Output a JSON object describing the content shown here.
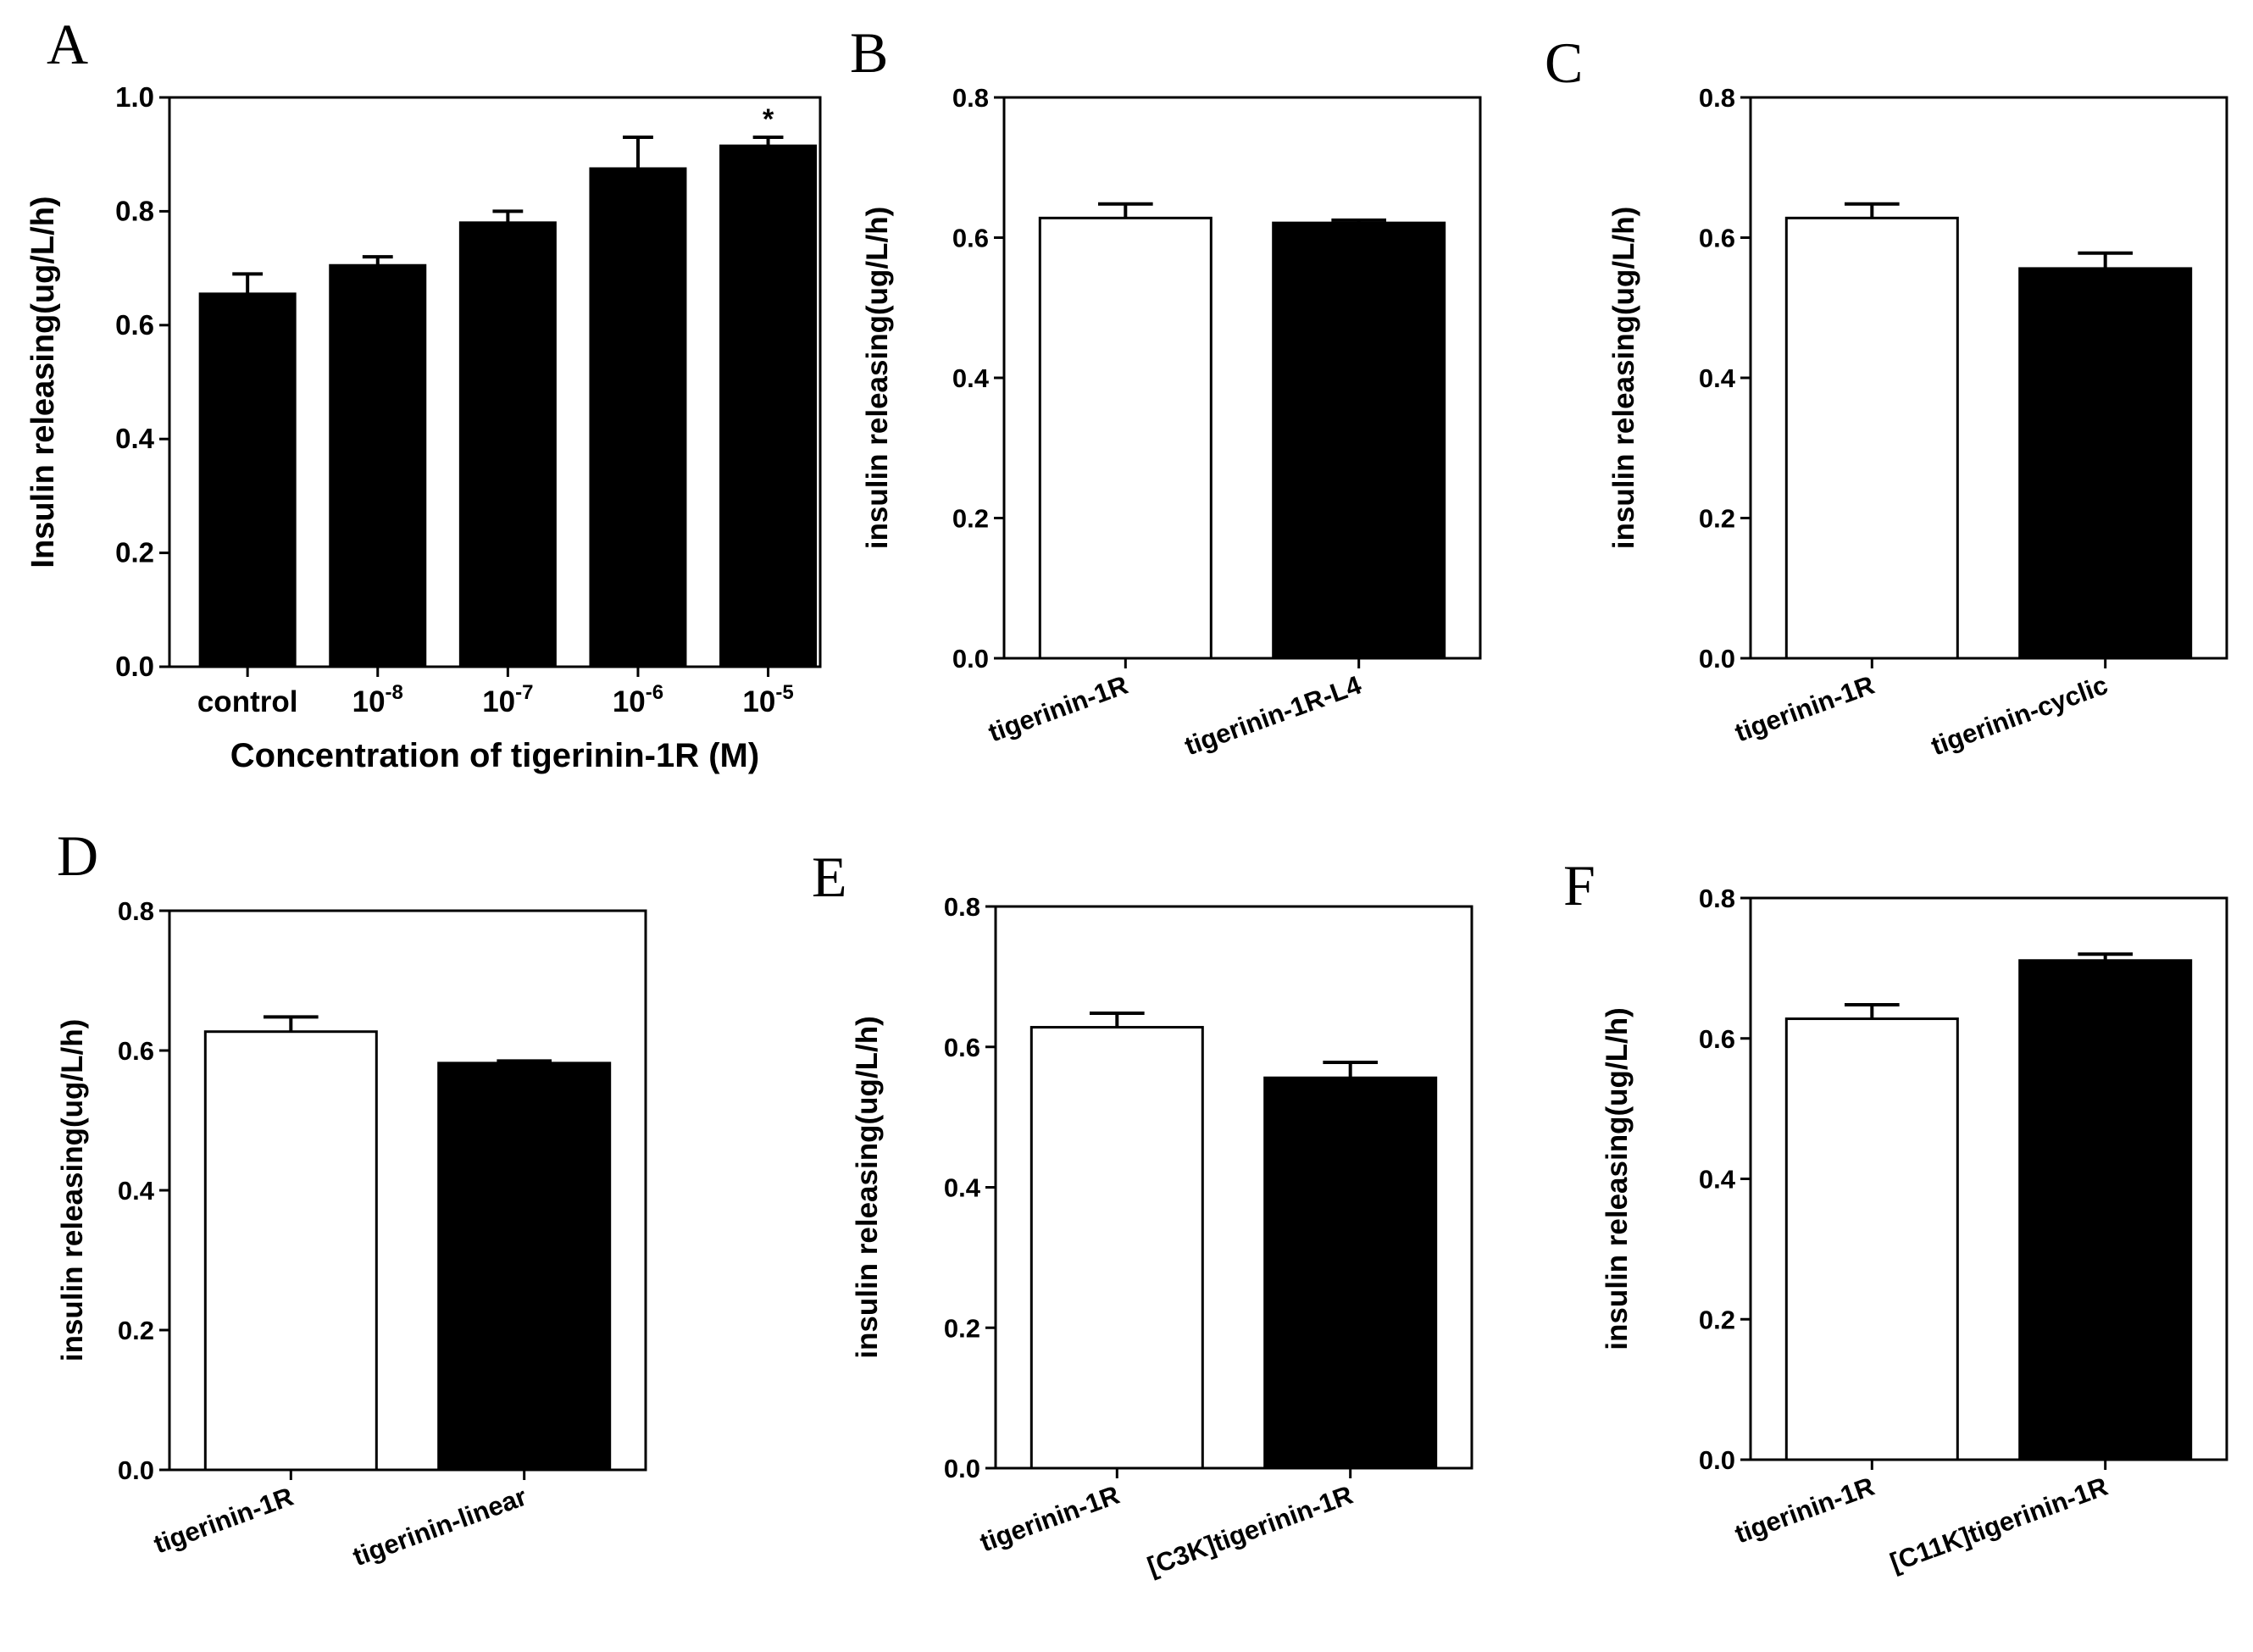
{
  "chart_data": [
    {
      "type": "bar",
      "panel": "A",
      "title": "",
      "ylabel": "Insulin releasing(ug/L/h)",
      "xlabel": "Concentration of tigerinin-1R (M)",
      "ylim": [
        0,
        1.0
      ],
      "yticks": [
        0.0,
        0.2,
        0.4,
        0.6,
        0.8,
        1.0
      ],
      "ytick_labels": [
        "0.0",
        "0.2",
        "0.4",
        "0.6",
        "0.8",
        "1.0"
      ],
      "categories": [
        {
          "base": "control",
          "exp": ""
        },
        {
          "base": "10",
          "exp": "-8"
        },
        {
          "base": "10",
          "exp": "-7"
        },
        {
          "base": "10",
          "exp": "-6"
        },
        {
          "base": "10",
          "exp": "-5"
        }
      ],
      "values": [
        0.655,
        0.705,
        0.78,
        0.875,
        0.915
      ],
      "errors": [
        0.035,
        0.015,
        0.02,
        0.055,
        0.015
      ],
      "fills": [
        "#000000",
        "#000000",
        "#000000",
        "#000000",
        "#000000"
      ],
      "annotations": [
        "",
        "",
        "",
        "",
        "*"
      ],
      "rotate_labels": false
    },
    {
      "type": "bar",
      "panel": "B",
      "ylabel": "insulin releasing(ug/L/h)",
      "xlabel": "",
      "ylim": [
        0,
        0.8
      ],
      "yticks": [
        0.0,
        0.2,
        0.4,
        0.6,
        0.8
      ],
      "ytick_labels": [
        "0.0",
        "0.2",
        "0.4",
        "0.6",
        "0.8"
      ],
      "categories": [
        {
          "base": "tigerinin-1R",
          "exp": ""
        },
        {
          "base": "tigerinin-1R-L4",
          "exp": ""
        }
      ],
      "values": [
        0.628,
        0.621
      ],
      "errors": [
        0.02,
        0.004
      ],
      "fills": [
        "#ffffff",
        "#000000"
      ],
      "annotations": [
        "",
        ""
      ],
      "rotate_labels": true
    },
    {
      "type": "bar",
      "panel": "C",
      "ylabel": "insulin releasing(ug/L/h)",
      "xlabel": "",
      "ylim": [
        0,
        0.8
      ],
      "yticks": [
        0.0,
        0.2,
        0.4,
        0.6,
        0.8
      ],
      "ytick_labels": [
        "0.0",
        "0.2",
        "0.4",
        "0.6",
        "0.8"
      ],
      "categories": [
        {
          "base": "tigerinin-1R",
          "exp": ""
        },
        {
          "base": "tigerinin-cyclic",
          "exp": ""
        }
      ],
      "values": [
        0.628,
        0.556
      ],
      "errors": [
        0.02,
        0.022
      ],
      "fills": [
        "#ffffff",
        "#000000"
      ],
      "annotations": [
        "",
        ""
      ],
      "rotate_labels": true
    },
    {
      "type": "bar",
      "panel": "D",
      "ylabel": "insulin releasing(ug/L/h)",
      "xlabel": "",
      "ylim": [
        0,
        0.8
      ],
      "yticks": [
        0.0,
        0.2,
        0.4,
        0.6,
        0.8
      ],
      "ytick_labels": [
        "0.0",
        "0.2",
        "0.4",
        "0.6",
        "0.8"
      ],
      "categories": [
        {
          "base": "tigerinin-1R",
          "exp": ""
        },
        {
          "base": "tigerinin-linear",
          "exp": ""
        }
      ],
      "values": [
        0.627,
        0.582
      ],
      "errors": [
        0.021,
        0.003
      ],
      "fills": [
        "#ffffff",
        "#000000"
      ],
      "annotations": [
        "",
        ""
      ],
      "rotate_labels": true
    },
    {
      "type": "bar",
      "panel": "E",
      "ylabel": "insulin releasing(ug/L/h)",
      "xlabel": "",
      "ylim": [
        0,
        0.8
      ],
      "yticks": [
        0.0,
        0.2,
        0.4,
        0.6,
        0.8
      ],
      "ytick_labels": [
        "0.0",
        "0.2",
        "0.4",
        "0.6",
        "0.8"
      ],
      "categories": [
        {
          "base": "tigerinin-1R",
          "exp": ""
        },
        {
          "base": "[C3K]tigerinin-1R",
          "exp": ""
        }
      ],
      "values": [
        0.628,
        0.556
      ],
      "errors": [
        0.02,
        0.022
      ],
      "fills": [
        "#ffffff",
        "#000000"
      ],
      "annotations": [
        "",
        ""
      ],
      "rotate_labels": true
    },
    {
      "type": "bar",
      "panel": "F",
      "ylabel": "insulin releasing(ug/L/h)",
      "xlabel": "",
      "ylim": [
        0,
        0.8
      ],
      "yticks": [
        0.0,
        0.2,
        0.4,
        0.6,
        0.8
      ],
      "ytick_labels": [
        "0.0",
        "0.2",
        "0.4",
        "0.6",
        "0.8"
      ],
      "categories": [
        {
          "base": "tigerinin-1R",
          "exp": ""
        },
        {
          "base": "[C11K]tigerinin-1R",
          "exp": ""
        }
      ],
      "values": [
        0.628,
        0.711
      ],
      "errors": [
        0.02,
        0.009
      ],
      "fills": [
        "#ffffff",
        "#000000"
      ],
      "annotations": [
        "",
        ""
      ],
      "rotate_labels": true
    }
  ]
}
